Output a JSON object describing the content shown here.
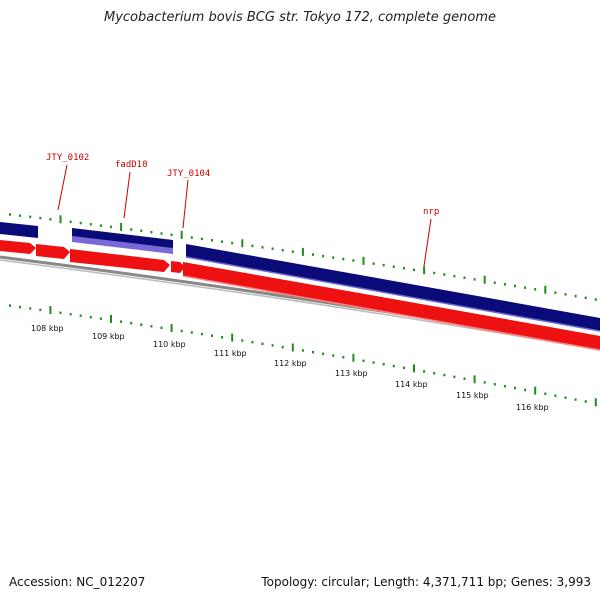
{
  "title": "Mycobacterium bovis BCG str. Tokyo 172, complete genome",
  "footer": {
    "accession": "Accession: NC_012207",
    "summary": "Topology: circular; Length: 4,371,711 bp; Genes: 3,993"
  },
  "colors": {
    "forward_gene": "#0a0a78",
    "forward_gene_highlight": "#7b68d8",
    "reverse_gene": "#ee1111",
    "backbone": "#888888",
    "ticks": "#1e8c1e",
    "label": "#cc0000"
  },
  "axis": {
    "unit": "kbp",
    "labels": [
      "108 kbp",
      "109 kbp",
      "110 kbp",
      "111 kbp",
      "112 kbp",
      "113 kbp",
      "114 kbp",
      "115 kbp",
      "116 kbp"
    ]
  },
  "gene_labels": [
    "JTY_0102",
    "fadD10",
    "JTY_0104",
    "nrp"
  ]
}
